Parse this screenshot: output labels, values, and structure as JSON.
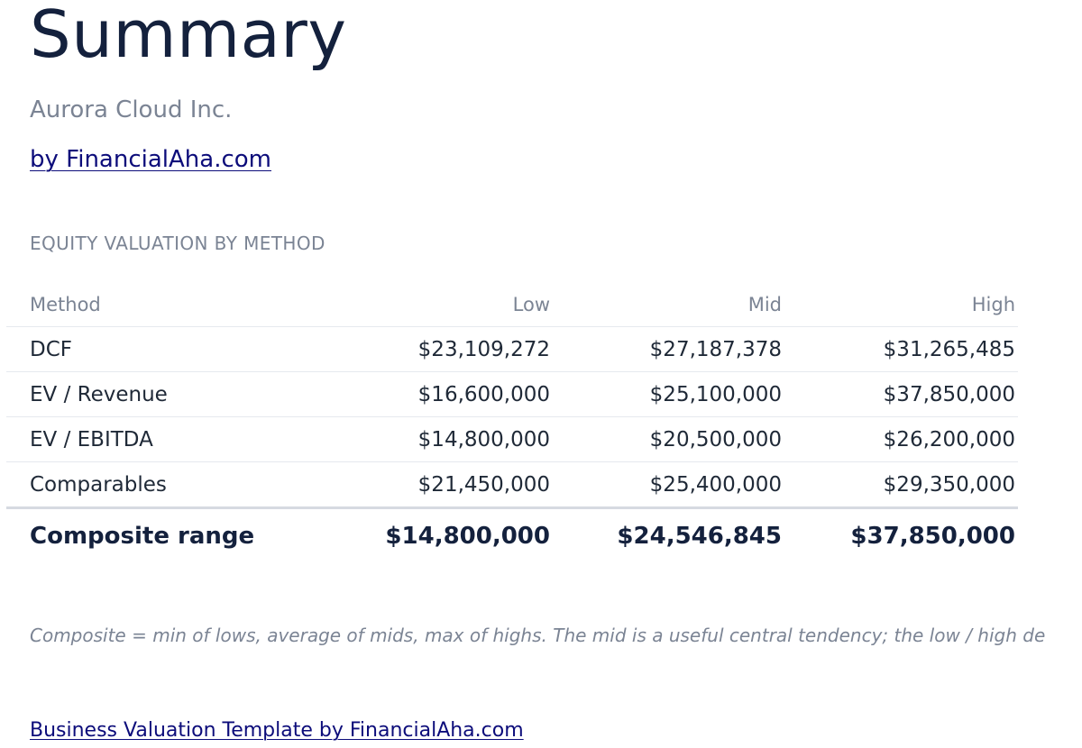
{
  "header": {
    "title": "Summary",
    "company": "Aurora Cloud Inc.",
    "byline": "by FinancialAha.com"
  },
  "section": {
    "label": "EQUITY VALUATION BY METHOD"
  },
  "table": {
    "columns": [
      "Method",
      "Low",
      "Mid",
      "High"
    ],
    "rows": [
      {
        "method": "DCF",
        "low": "$23,109,272",
        "mid": "$27,187,378",
        "high": "$31,265,485"
      },
      {
        "method": "EV / Revenue",
        "low": "$16,600,000",
        "mid": "$25,100,000",
        "high": "$37,850,000"
      },
      {
        "method": "EV / EBITDA",
        "low": "$14,800,000",
        "mid": "$20,500,000",
        "high": "$26,200,000"
      },
      {
        "method": "Comparables",
        "low": "$21,450,000",
        "mid": "$25,400,000",
        "high": "$29,350,000"
      }
    ],
    "composite": {
      "method": "Composite range",
      "low": "$14,800,000",
      "mid": "$24,546,845",
      "high": "$37,850,000"
    }
  },
  "note": "Composite = min of lows, average of mids, max of highs. The mid is a useful central tendency; the low / high de",
  "footer": {
    "link": "Business Valuation Template by FinancialAha.com"
  },
  "colors": {
    "title": "#14213d",
    "muted": "#7b8494",
    "link": "#0c0c7a",
    "body_text": "#1f2937",
    "rule": "#e6e9ee"
  }
}
